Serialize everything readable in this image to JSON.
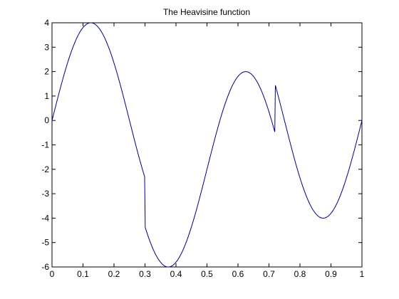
{
  "chart_data": {
    "type": "line",
    "title": "The Heavisine function",
    "xlabel": "",
    "ylabel": "",
    "xlim": [
      0,
      1
    ],
    "ylim": [
      -6,
      4
    ],
    "x_ticks": [
      "0",
      "0.1",
      "0.2",
      "0.3",
      "0.4",
      "0.5",
      "0.6",
      "0.7",
      "0.8",
      "0.9",
      "1"
    ],
    "y_ticks": [
      "4",
      "3",
      "2",
      "1",
      "0",
      "-1",
      "-2",
      "-3",
      "-4",
      "-5",
      "-6"
    ],
    "grid": false,
    "legend": "none",
    "series": [
      {
        "color": "#00008b",
        "function": "4*sin(4*pi*x) - sign(x-0.3) - sign(0.72-x)",
        "x_domain": [
          0,
          1
        ]
      }
    ]
  }
}
